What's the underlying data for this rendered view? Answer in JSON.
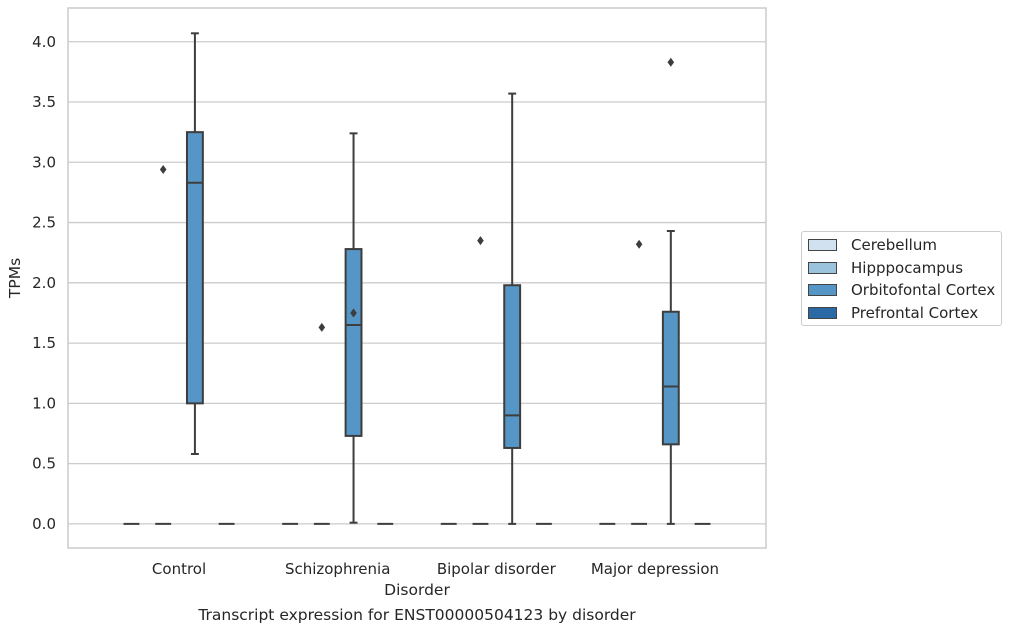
{
  "caption": "Transcript expression for ENST00000504123 by disorder",
  "chart_data": {
    "type": "box",
    "xlabel": "Disorder",
    "ylabel": "TPMs",
    "categories": [
      "Control",
      "Schizophrenia",
      "Bipolar disorder",
      "Major depression"
    ],
    "ylim": [
      -0.2,
      4.28
    ],
    "yticks": [
      0.0,
      0.5,
      1.0,
      1.5,
      2.0,
      2.5,
      3.0,
      3.5,
      4.0
    ],
    "ytick_labels": [
      "0.0",
      "0.5",
      "1.0",
      "1.5",
      "2.0",
      "2.5",
      "3.0",
      "3.5",
      "4.0"
    ],
    "grid": "horizontal",
    "legend_position": "right",
    "series": [
      {
        "name": "Cerebellum",
        "color": "#d1e1f0",
        "boxes": [
          {
            "category": "Control",
            "whislo": 0,
            "q1": 0,
            "med": 0,
            "q3": 0,
            "whishi": 0,
            "fliers": []
          },
          {
            "category": "Schizophrenia",
            "whislo": 0,
            "q1": 0,
            "med": 0,
            "q3": 0,
            "whishi": 0,
            "fliers": []
          },
          {
            "category": "Bipolar disorder",
            "whislo": 0,
            "q1": 0,
            "med": 0,
            "q3": 0,
            "whishi": 0,
            "fliers": []
          },
          {
            "category": "Major depression",
            "whislo": 0,
            "q1": 0,
            "med": 0,
            "q3": 0,
            "whishi": 0,
            "fliers": []
          }
        ]
      },
      {
        "name": "Hipppocampus",
        "color": "#9bc3de",
        "boxes": [
          {
            "category": "Control",
            "whislo": 0,
            "q1": 0,
            "med": 0,
            "q3": 0,
            "whishi": 0,
            "fliers": [
              2.94
            ]
          },
          {
            "category": "Schizophrenia",
            "whislo": 0,
            "q1": 0,
            "med": 0,
            "q3": 0,
            "whishi": 0,
            "fliers": [
              1.63
            ]
          },
          {
            "category": "Bipolar disorder",
            "whislo": 0,
            "q1": 0,
            "med": 0,
            "q3": 0,
            "whishi": 0,
            "fliers": [
              2.35
            ]
          },
          {
            "category": "Major depression",
            "whislo": 0,
            "q1": 0,
            "med": 0,
            "q3": 0,
            "whishi": 0,
            "fliers": [
              2.32
            ]
          }
        ]
      },
      {
        "name": "Orbitofontal Cortex",
        "color": "#5696c6",
        "boxes": [
          {
            "category": "Control",
            "whislo": 0.58,
            "q1": 1.0,
            "med": 2.83,
            "q3": 3.25,
            "whishi": 4.07,
            "fliers": []
          },
          {
            "category": "Schizophrenia",
            "whislo": 0.01,
            "q1": 0.73,
            "med": 1.65,
            "q3": 2.28,
            "whishi": 3.24,
            "fliers": [
              1.75
            ]
          },
          {
            "category": "Bipolar disorder",
            "whislo": 0,
            "q1": 0.63,
            "med": 0.9,
            "q3": 1.98,
            "whishi": 3.57,
            "fliers": []
          },
          {
            "category": "Major depression",
            "whislo": 0,
            "q1": 0.66,
            "med": 1.14,
            "q3": 1.76,
            "whishi": 2.43,
            "fliers": [
              3.83
            ]
          }
        ]
      },
      {
        "name": "Prefrontal Cortex",
        "color": "#2a68a6",
        "boxes": [
          {
            "category": "Control",
            "whislo": 0,
            "q1": 0,
            "med": 0,
            "q3": 0,
            "whishi": 0,
            "fliers": []
          },
          {
            "category": "Schizophrenia",
            "whislo": 0,
            "q1": 0,
            "med": 0,
            "q3": 0,
            "whishi": 0,
            "fliers": []
          },
          {
            "category": "Bipolar disorder",
            "whislo": 0,
            "q1": 0,
            "med": 0,
            "q3": 0,
            "whishi": 0,
            "fliers": []
          },
          {
            "category": "Major depression",
            "whislo": 0,
            "q1": 0,
            "med": 0,
            "q3": 0,
            "whishi": 0,
            "fliers": []
          }
        ]
      }
    ]
  }
}
